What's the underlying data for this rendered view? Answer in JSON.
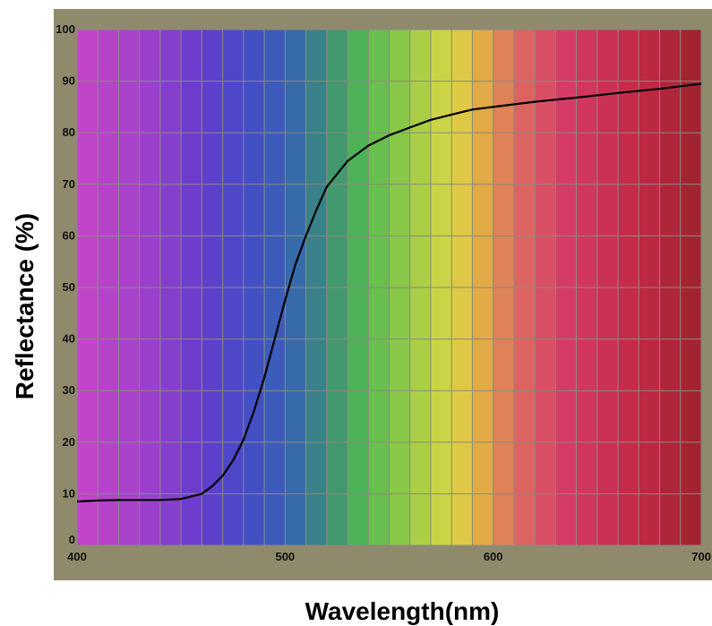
{
  "chart_data": {
    "type": "line",
    "title": "",
    "xlabel": "Wavelength(nm)",
    "ylabel": "Reflectance (%)",
    "xlim": [
      400,
      700
    ],
    "ylim": [
      0,
      100
    ],
    "x_ticks": [
      "400",
      "500",
      "600",
      "700"
    ],
    "y_ticks": [
      "0",
      "10",
      "20",
      "30",
      "40",
      "50",
      "60",
      "70",
      "80",
      "90",
      "100"
    ],
    "grid": true,
    "background": "visible-spectrum color bands",
    "line_color": "#000000",
    "frame_color": "#8f8a6c",
    "x": [
      400,
      410,
      420,
      430,
      440,
      450,
      460,
      465,
      470,
      475,
      480,
      485,
      490,
      495,
      500,
      505,
      510,
      515,
      520,
      525,
      530,
      540,
      550,
      560,
      570,
      580,
      590,
      600,
      620,
      640,
      660,
      680,
      700
    ],
    "y": [
      8.5,
      8.7,
      8.8,
      8.8,
      8.8,
      9.0,
      10.0,
      11.5,
      13.5,
      16.5,
      20.5,
      26.0,
      32.5,
      40.0,
      47.5,
      54.5,
      60.0,
      65.0,
      69.5,
      72.0,
      74.5,
      77.5,
      79.5,
      81.0,
      82.5,
      83.5,
      84.5,
      85.0,
      86.0,
      86.8,
      87.7,
      88.5,
      89.5
    ]
  }
}
